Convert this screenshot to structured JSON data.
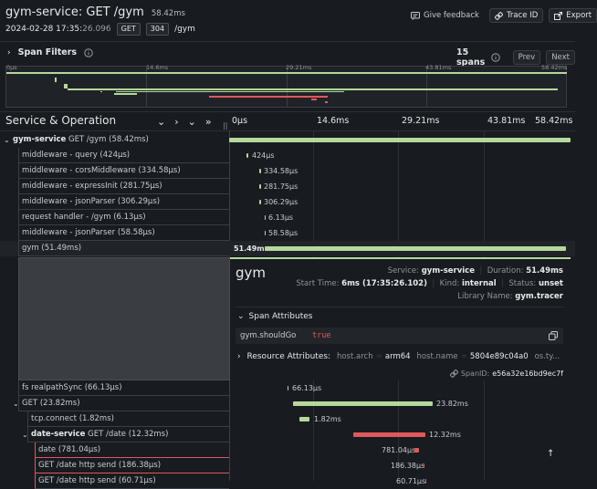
{
  "header": {
    "service_op": "gym-service: GET /gym",
    "duration": "58.42ms",
    "timestamp_main": "2024-02-28 17:35:",
    "timestamp_ms": "26.096",
    "method": "GET",
    "status": "304",
    "path": "/gym",
    "give_feedback": "Give feedback",
    "trace_id": "Trace ID",
    "export": "Export"
  },
  "filters": {
    "label": "Span Filters",
    "span_count": "15 spans",
    "prev": "Prev",
    "next": "Next"
  },
  "minimap": {
    "ticks": [
      "0μs",
      "14.6ms",
      "29.21ms",
      "43.81ms",
      "58.42ms"
    ]
  },
  "columns": {
    "service_operation": "Service & Operation",
    "ticks": [
      "0μs",
      "14.6ms",
      "29.21ms",
      "43.81ms",
      "58.42ms"
    ]
  },
  "spans": [
    {
      "service": "gym-service",
      "op": "GET /gym (58.42ms)",
      "value": "",
      "color": "#b5d99c"
    },
    {
      "service": "",
      "op": "middleware - query (424μs)",
      "value": "424μs",
      "color": "#b5d99c"
    },
    {
      "service": "",
      "op": "middleware - corsMiddleware (334.58μs)",
      "value": "334.58μs",
      "color": "#b5d99c"
    },
    {
      "service": "",
      "op": "middleware - expressInit (281.75μs)",
      "value": "281.75μs",
      "color": "#b5d99c"
    },
    {
      "service": "",
      "op": "middleware - jsonParser (306.29μs)",
      "value": "306.29μs",
      "color": "#b5d99c"
    },
    {
      "service": "",
      "op": "request handler - /gym (6.13μs)",
      "value": "6.13μs",
      "color": "#b5d99c"
    },
    {
      "service": "",
      "op": "middleware - jsonParser (58.58μs)",
      "value": "58.58μs",
      "color": "#b5d99c"
    },
    {
      "service": "",
      "op": "gym (51.49ms)",
      "value": "51.49ms",
      "color": "#b5d99c"
    },
    {
      "service": "",
      "op": "fs realpathSync (66.13μs)",
      "value": "66.13μs",
      "color": "#b5d99c"
    },
    {
      "service": "",
      "op": "GET (23.82ms)",
      "value": "23.82ms",
      "color": "#b5d99c"
    },
    {
      "service": "",
      "op": "tcp.connect (1.82ms)",
      "value": "1.82ms",
      "color": "#b5d99c"
    },
    {
      "service": "date-service",
      "op": "GET /date (12.32ms)",
      "value": "12.32ms",
      "color": "#e0585b"
    },
    {
      "service": "",
      "op": "date (781.04μs)",
      "value": "781.04μs",
      "color": "#e0585b"
    },
    {
      "service": "",
      "op": "GET /date http send (186.38μs)",
      "value": "186.38μs",
      "color": "#e0585b"
    },
    {
      "service": "",
      "op": "GET /date http send (60.71μs)",
      "value": "60.71μs",
      "color": "#e0585b"
    }
  ],
  "detail": {
    "name": "gym",
    "service_key": "Service:",
    "service_val": "gym-service",
    "duration_key": "Duration:",
    "duration_val": "51.49ms",
    "start_key": "Start Time:",
    "start_val": "6ms (17:35:26.102)",
    "kind_key": "Kind:",
    "kind_val": "internal",
    "status_key": "Status:",
    "status_val": "unset",
    "library_key": "Library Name:",
    "library_val": "gym.tracer",
    "span_attributes": "Span Attributes",
    "attr_key": "gym.shouldGo",
    "attr_val": "true",
    "resource_attributes": "Resource Attributes:",
    "res1_key": "host.arch",
    "res1_val": "arm64",
    "res2_key": "host.name",
    "res2_val": "5804e89c04a0",
    "res3": "os.ty...",
    "spanid_key": "SpanID:",
    "spanid_val": "e56a32e16bd9ec7f"
  }
}
